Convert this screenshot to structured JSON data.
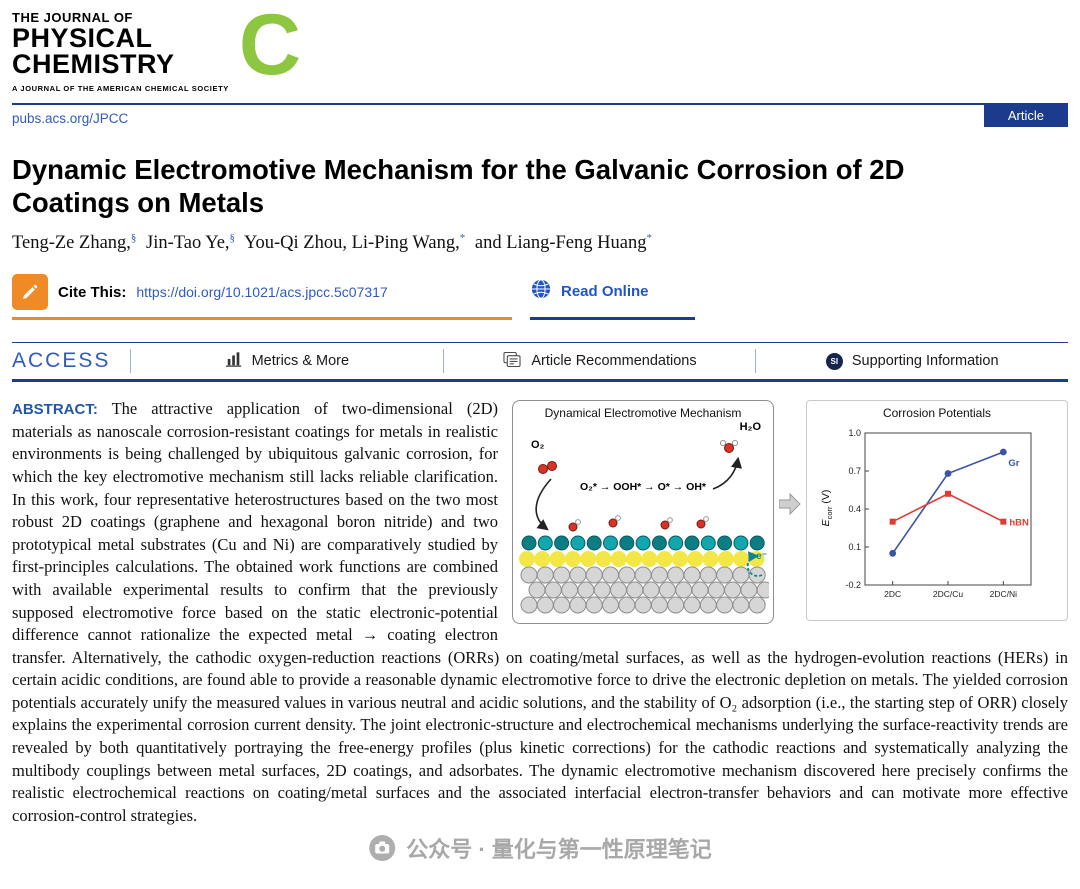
{
  "journal": {
    "masthead_line1": "THE JOURNAL OF",
    "masthead_line2": "PHYSICAL",
    "masthead_line3": "CHEMISTRY",
    "letter": "C",
    "society_line": "A JOURNAL OF THE AMERICAN CHEMICAL SOCIETY",
    "site_url": "pubs.acs.org/JPCC",
    "article_badge": "Article",
    "brand_green": "#8dc63f",
    "acs_blue": "#1b3c8c",
    "accent_orange": "#f08a24"
  },
  "article": {
    "title": "Dynamic Electromotive Mechanism for the Galvanic Corrosion of 2D Coatings on Metals",
    "authors": [
      {
        "name": "Teng-Ze Zhang,",
        "sup": "§"
      },
      {
        "name": "Jin-Tao Ye,",
        "sup": "§"
      },
      {
        "name": "You-Qi Zhou, Li-Ping Wang,",
        "sup": "*"
      },
      {
        "name": "and Liang-Feng Huang",
        "sup": "*"
      }
    ],
    "cite": {
      "label": "Cite This:",
      "doi": "https://doi.org/10.1021/acs.jpcc.5c07317"
    },
    "read_online": "Read Online"
  },
  "access_bar": {
    "access": "ACCESS",
    "items": [
      {
        "label": "Metrics & More"
      },
      {
        "label": "Article Recommendations"
      },
      {
        "label": "Supporting Information"
      }
    ],
    "si_badge": "SI"
  },
  "abstract": {
    "label": "ABSTRACT:",
    "text": "The attractive application of two-dimensional (2D) materials as nanoscale corrosion-resistant coatings for metals in realistic environments is being challenged by ubiquitous galvanic corrosion, for which the key electromotive mechanism still lacks reliable clarification. In this work, four representative heterostructures based on the two most robust 2D coatings (graphene and hexagonal boron nitride) and two prototypical metal substrates (Cu and Ni) are comparatively studied by first-principles calculations. The obtained work functions are combined with available experimental results to confirm that the previously supposed electromotive force based on the static electronic-potential difference cannot rationalize the expected metal → coating electron transfer. Alternatively, the cathodic oxygen-reduction reactions (ORRs) on coating/metal surfaces, as well as the hydrogen-evolution reactions (HERs) in certain acidic conditions, are found able to provide a reasonable dynamic electromotive force to drive the electronic depletion on metals. The yielded corrosion potentials accurately unify the measured values in various neutral and acidic solutions, and the stability of O₂ adsorption (i.e., the starting step of ORR) closely explains the experimental corrosion current density. The joint electronic-structure and electrochemical mechanisms underlying the surface-reactivity trends are revealed by both quantitatively portraying the free-energy profiles (plus kinetic corrections) for the cathodic reactions and systematically analyzing the multibody couplings between metal surfaces, 2D coatings, and adsorbates. The dynamic electromotive mechanism discovered here precisely confirms the realistic electrochemical reactions on coating/metal surfaces and the associated interfacial electron-transfer behaviors and can motivate more effective corrosion-control strategies."
  },
  "figure": {
    "mechanism_title": "Dynamical Electromotive Mechanism",
    "o2_label": "O₂",
    "h2o_label": "H₂O",
    "reaction_chain": "O₂* → OOH* → O* → OH*",
    "electron_label": "e⁻"
  },
  "chart_data": {
    "type": "line",
    "title": "Corrosion Potentials",
    "categories": [
      "2DC",
      "2DC/Cu",
      "2DC/Ni"
    ],
    "series": [
      {
        "name": "Gr",
        "color": "#3b54a5",
        "values": [
          0.05,
          0.68,
          0.85
        ]
      },
      {
        "name": "hBN",
        "color": "#e03a34",
        "values": [
          0.3,
          0.52,
          0.3
        ]
      }
    ],
    "ylabel": "Ecorr (V)",
    "ylabel_parts": {
      "symbol": "E",
      "sub": "corr",
      "unit": "(V)"
    },
    "ylim": [
      -0.2,
      1.0
    ],
    "yticks": [
      1.0,
      0.7,
      0.4,
      0.1,
      -0.2
    ],
    "grid": false,
    "legend_position": "inline-right"
  },
  "watermark": {
    "text": "公众号 · 量化与第一性原理笔记"
  }
}
